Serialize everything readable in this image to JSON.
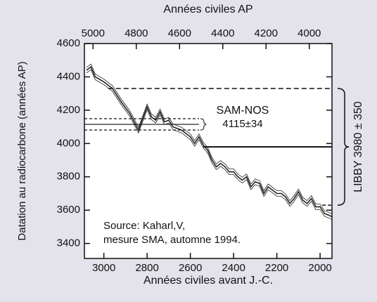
{
  "chart_data": {
    "type": "line",
    "xlabel": "Années civiles avant J.-C.",
    "x2label": "Années civiles AP",
    "ylabel": "Datation au radiocarbone (années AP)",
    "x": [
      3080,
      3060,
      3040,
      3000,
      2960,
      2920,
      2880,
      2860,
      2840,
      2820,
      2800,
      2780,
      2760,
      2740,
      2720,
      2700,
      2680,
      2660,
      2640,
      2620,
      2600,
      2580,
      2560,
      2540,
      2520,
      2500,
      2480,
      2460,
      2440,
      2420,
      2400,
      2380,
      2360,
      2340,
      2320,
      2300,
      2280,
      2260,
      2240,
      2220,
      2200,
      2180,
      2160,
      2140,
      2120,
      2100,
      2080,
      2060,
      2040,
      2020,
      2000,
      1980,
      1960,
      1945
    ],
    "series": [
      {
        "color": "#222222",
        "values": [
          4440,
          4460,
          4400,
          4370,
          4330,
          4250,
          4180,
          4130,
          4080,
          4150,
          4220,
          4160,
          4140,
          4190,
          4130,
          4140,
          4100,
          4090,
          4080,
          4060,
          4040,
          4000,
          4040,
          3990,
          3960,
          3900,
          3860,
          3880,
          3860,
          3830,
          3830,
          3800,
          3780,
          3800,
          3740,
          3770,
          3760,
          3700,
          3740,
          3720,
          3700,
          3700,
          3680,
          3640,
          3670,
          3710,
          3660,
          3640,
          3670,
          3620,
          3620,
          3580,
          3570,
          3560
        ]
      }
    ],
    "xlim": [
      3090,
      1945
    ],
    "xticks": [
      3000,
      2800,
      2600,
      2400,
      2200,
      2000
    ],
    "x2lim": [
      5040,
      3895
    ],
    "x2ticks": [
      5000,
      4800,
      4600,
      4400,
      4200,
      4000
    ],
    "ylim": [
      3310,
      4600
    ],
    "yticks": [
      3400,
      3600,
      3800,
      4000,
      4200,
      4400,
      4600
    ],
    "annotations": [
      {
        "lines": [
          "SAM-NOS",
          "4115±34"
        ],
        "value": 4115,
        "error": 34,
        "x_from": 3090,
        "x_to": 2560
      },
      {
        "lines": [
          "LIBBY 3980 ± 350"
        ],
        "value": 3980,
        "error": 350,
        "x_from": 2540,
        "x_from_upper": 2980,
        "x_from_lower": 1990,
        "x_to": 1945
      }
    ],
    "source": [
      "Source: Kaharl,V,",
      "mesure SMA, automne 1994."
    ]
  }
}
